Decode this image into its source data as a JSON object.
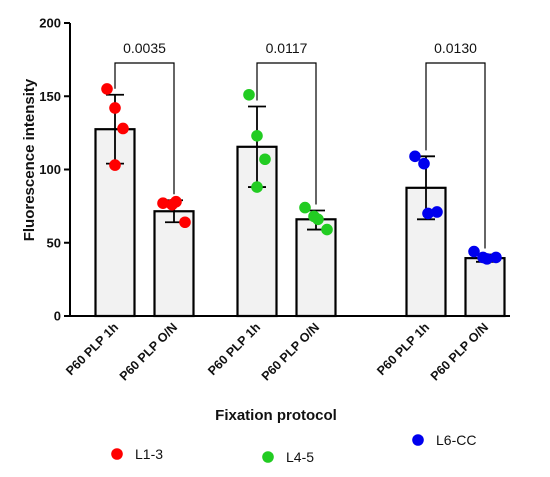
{
  "chart_data": {
    "type": "bar",
    "xlabel": "Fixation protocol",
    "ylabel": "Fluorescence intensity",
    "ylim": [
      0,
      200
    ],
    "yticks": [
      0,
      50,
      100,
      150,
      200
    ],
    "grid": false,
    "legend_position": "bottom",
    "bar_fill": "#f2f2f2",
    "bar_stroke": "#000000",
    "groups": [
      {
        "series": "L1-3",
        "color": "#ff0000",
        "bars": [
          {
            "label": "P60 PLP 1h",
            "mean": 127.5,
            "err_low": 104,
            "err_high": 151,
            "points": [
              155,
              142,
              128,
              103
            ]
          },
          {
            "label": "P60 PLP O/N",
            "mean": 71.5,
            "err_low": 64,
            "err_high": 79,
            "points": [
              77,
              76,
              78,
              64
            ]
          }
        ],
        "p_value": "0.0035"
      },
      {
        "series": "L4-5",
        "color": "#22cc22",
        "bars": [
          {
            "label": "P60 PLP 1h",
            "mean": 115.5,
            "err_low": 88,
            "err_high": 143,
            "points": [
              151,
              123,
              107,
              88
            ]
          },
          {
            "label": "P60 PLP O/N",
            "mean": 66,
            "err_low": 59,
            "err_high": 72,
            "points": [
              74,
              68,
              66,
              59
            ]
          }
        ],
        "p_value": "0.0117"
      },
      {
        "series": "L6-CC",
        "color": "#0000ee",
        "bars": [
          {
            "label": "P60 PLP 1h",
            "mean": 87.5,
            "err_low": 66,
            "err_high": 109,
            "points": [
              109,
              104,
              70,
              71
            ]
          },
          {
            "label": "P60 PLP O/N",
            "mean": 39.5,
            "err_low": 37,
            "err_high": 42,
            "points": [
              44,
              40,
              39,
              40
            ]
          }
        ],
        "p_value": "0.0130"
      }
    ],
    "legend": [
      {
        "name": "L1-3",
        "color": "#ff0000"
      },
      {
        "name": "L4-5",
        "color": "#22cc22"
      },
      {
        "name": "L6-CC",
        "color": "#0000ee"
      }
    ]
  }
}
